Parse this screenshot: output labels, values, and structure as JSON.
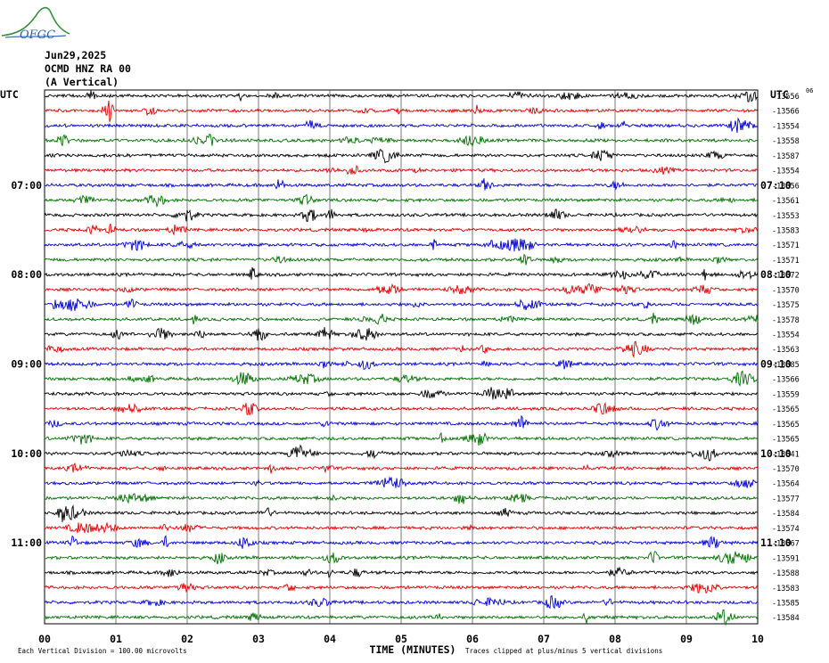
{
  "logo": {
    "text": "OFGC"
  },
  "header": {
    "date": "Jun29,2025",
    "station": "OCMD HNZ RA 00",
    "component": "(A Vertical)"
  },
  "chart_data": {
    "type": "line",
    "title": "",
    "left_axis_title": "UTC",
    "right_axis_title": "UTC",
    "right_top_label": "06",
    "xlabel": "TIME (MINUTES)",
    "x_ticks": [
      "00",
      "01",
      "02",
      "03",
      "04",
      "05",
      "06",
      "07",
      "08",
      "09",
      "10"
    ],
    "x_range": [
      0,
      10
    ],
    "left_time_labels": [
      {
        "row": 6,
        "label": "07:00"
      },
      {
        "row": 12,
        "label": "08:00"
      },
      {
        "row": 18,
        "label": "09:00"
      },
      {
        "row": 24,
        "label": "10:00"
      },
      {
        "row": 30,
        "label": "11:00"
      }
    ],
    "right_time_labels": [
      {
        "row": 6,
        "label": "07:10"
      },
      {
        "row": 12,
        "label": "08:10"
      },
      {
        "row": 18,
        "label": "09:10"
      },
      {
        "row": 24,
        "label": "10:10"
      },
      {
        "row": 30,
        "label": "11:10"
      }
    ],
    "trace_offsets": [
      "-13556",
      "-13566",
      "-13554",
      "-13558",
      "-13587",
      "-13554",
      "-13556",
      "-13561",
      "-13553",
      "-13583",
      "-13571",
      "-13571",
      "-13572",
      "-13570",
      "-13575",
      "-13578",
      "-13554",
      "-13563",
      "-13585",
      "-13566",
      "-13559",
      "-13565",
      "-13565",
      "-13565",
      "-13541",
      "-13570",
      "-13564",
      "-13577",
      "-13584",
      "-13574",
      "-13567",
      "-13591",
      "-13588",
      "-13583",
      "-13585",
      "-13584"
    ],
    "trace_colors": [
      "#000000",
      "#e00000",
      "#0000d0",
      "#007000"
    ],
    "grid": true,
    "footer_left": "Each Vertical Division =  100.00 microvolts",
    "footer_right": "Traces clipped at plus/minus 5 vertical divisions"
  }
}
